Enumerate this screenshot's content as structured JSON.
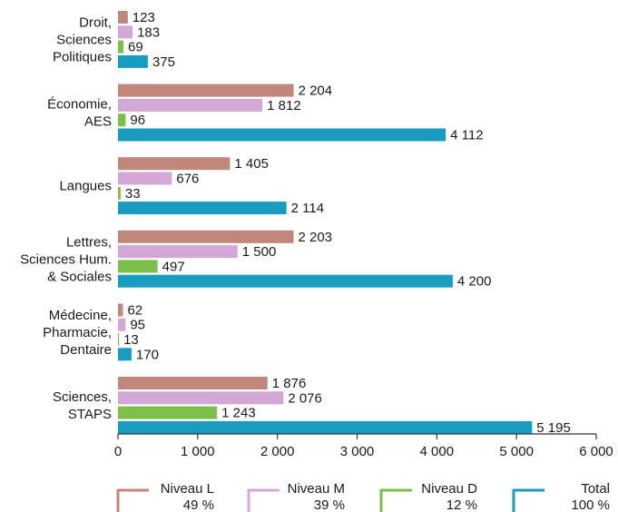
{
  "chart_data": {
    "type": "bar",
    "orientation": "horizontal",
    "categories": [
      [
        "Droit,",
        "Sciences",
        "Politiques"
      ],
      [
        "Économie,",
        "AES"
      ],
      [
        "Langues"
      ],
      [
        "Lettres,",
        "Sciences Hum.",
        "& Sociales"
      ],
      [
        "Médecine,",
        "Pharmacie,",
        "Dentaire"
      ],
      [
        "Sciences,",
        "STAPS"
      ]
    ],
    "series": [
      {
        "name": "Niveau L",
        "share": "49 %",
        "color": "#c0887a",
        "values": [
          123,
          2204,
          1405,
          2203,
          62,
          1876
        ],
        "labels": [
          "123",
          "2 204",
          "1 405",
          "2 203",
          "62",
          "1 876"
        ]
      },
      {
        "name": "Niveau M",
        "share": "39 %",
        "color": "#d4a8d6",
        "values": [
          183,
          1812,
          676,
          1500,
          95,
          2076
        ],
        "labels": [
          "183",
          "1 812",
          "676",
          "1 500",
          "95",
          "2 076"
        ]
      },
      {
        "name": "Niveau D",
        "share": "12 %",
        "color": "#7dbf4a",
        "values": [
          69,
          96,
          33,
          497,
          13,
          1243
        ],
        "labels": [
          "69",
          "96",
          "33",
          "497",
          "13",
          "1 243"
        ]
      },
      {
        "name": "Total",
        "share": "100 %",
        "color": "#1a9cc0",
        "values": [
          375,
          4112,
          2114,
          4200,
          170,
          5195
        ],
        "labels": [
          "375",
          "4 112",
          "2 114",
          "4 200",
          "170",
          "5 195"
        ]
      }
    ],
    "xlim": [
      0,
      6000
    ],
    "xticks": [
      0,
      1000,
      2000,
      3000,
      4000,
      5000,
      6000
    ],
    "xtick_labels": [
      "0",
      "1 000",
      "2 000",
      "3 000",
      "4 000",
      "5 000",
      "6 000"
    ],
    "grid": false,
    "legend_position": "bottom"
  }
}
